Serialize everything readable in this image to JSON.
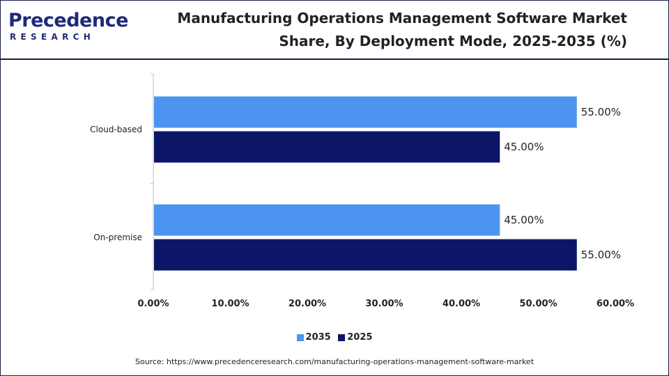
{
  "brand": {
    "name": "Precedence",
    "subtitle": "RESEARCH",
    "color": "#1e2a78"
  },
  "title": {
    "line1": "Manufacturing Operations Management Software Market",
    "line2": "Share, By Deployment Mode, 2025-2035 (%)"
  },
  "chart_data": {
    "type": "bar",
    "orientation": "horizontal",
    "categories": [
      "Cloud-based",
      "On-premise"
    ],
    "series": [
      {
        "name": "2035",
        "color": "#4d94f0",
        "values": [
          55.0,
          45.0
        ],
        "labels": [
          "55.00%",
          "45.00%"
        ]
      },
      {
        "name": "2025",
        "color": "#0b1766",
        "values": [
          45.0,
          55.0
        ],
        "labels": [
          "45.00%",
          "55.00%"
        ]
      }
    ],
    "xlim": [
      0,
      60
    ],
    "x_ticks": [
      0,
      10,
      20,
      30,
      40,
      50,
      60
    ],
    "x_tick_labels": [
      "0.00%",
      "10.00%",
      "20.00%",
      "30.00%",
      "40.00%",
      "50.00%",
      "60.00%"
    ],
    "grid": false,
    "legend_position": "bottom"
  },
  "source": "Source: https://www.precedenceresearch.com/manufacturing-operations-management-software-market"
}
